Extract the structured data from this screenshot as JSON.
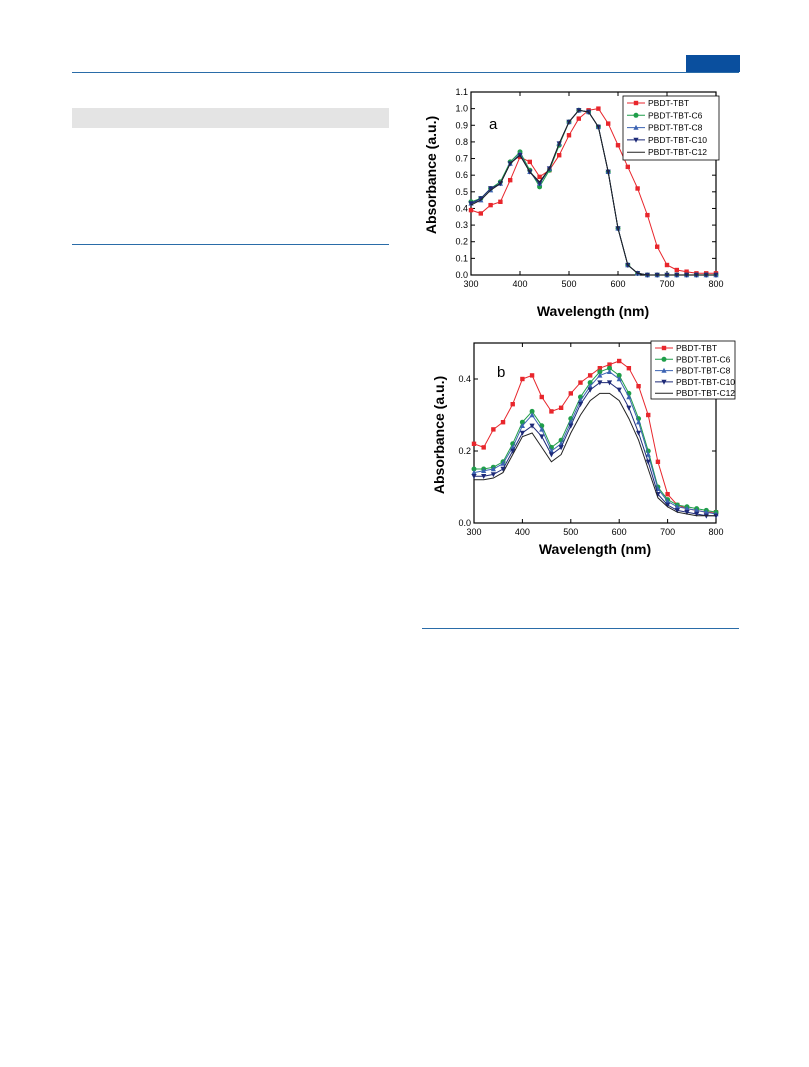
{
  "chart_data": [
    {
      "type": "line",
      "panel_label": "a",
      "xlabel": "Wavelength (nm)",
      "ylabel": "Absorbance (a.u.)",
      "xlim": [
        300,
        800
      ],
      "ylim": [
        0.0,
        1.1
      ],
      "xticks": [
        "300",
        "400",
        "500",
        "600",
        "700",
        "800"
      ],
      "yticks": [
        "0.0",
        "0.1",
        "0.2",
        "0.3",
        "0.4",
        "0.5",
        "0.6",
        "0.7",
        "0.8",
        "0.9",
        "1.0",
        "1.1"
      ],
      "legend_position": "top-right",
      "x": [
        300,
        320,
        340,
        360,
        380,
        400,
        420,
        440,
        460,
        480,
        500,
        520,
        540,
        560,
        580,
        600,
        620,
        640,
        660,
        680,
        700,
        720,
        740,
        760,
        780,
        800
      ],
      "series": [
        {
          "name": "PBDT-TBT",
          "color": "#e8262c",
          "marker": "square",
          "values": [
            0.39,
            0.37,
            0.42,
            0.44,
            0.57,
            0.71,
            0.68,
            0.59,
            0.63,
            0.72,
            0.84,
            0.94,
            0.99,
            1.0,
            0.91,
            0.78,
            0.65,
            0.52,
            0.36,
            0.17,
            0.06,
            0.03,
            0.02,
            0.01,
            0.01,
            0.01
          ]
        },
        {
          "name": "PBDT-TBT-C6",
          "color": "#1f9e4a",
          "marker": "circle",
          "values": [
            0.44,
            0.46,
            0.52,
            0.56,
            0.68,
            0.74,
            0.63,
            0.53,
            0.63,
            0.78,
            0.92,
            0.99,
            0.98,
            0.89,
            0.62,
            0.28,
            0.06,
            0.01,
            0.0,
            0.0,
            0.0,
            0.0,
            0.0,
            0.0,
            0.0,
            0.0
          ]
        },
        {
          "name": "PBDT-TBT-C8",
          "color": "#3b63b3",
          "marker": "triangle-up",
          "values": [
            0.43,
            0.45,
            0.51,
            0.55,
            0.67,
            0.73,
            0.62,
            0.55,
            0.64,
            0.79,
            0.92,
            0.99,
            0.98,
            0.89,
            0.62,
            0.28,
            0.06,
            0.01,
            0.0,
            0.0,
            0.0,
            0.0,
            0.0,
            0.0,
            0.0,
            0.0
          ]
        },
        {
          "name": "PBDT-TBT-C10",
          "color": "#1e2a78",
          "marker": "triangle-down",
          "values": [
            0.43,
            0.46,
            0.52,
            0.55,
            0.67,
            0.72,
            0.62,
            0.55,
            0.64,
            0.79,
            0.92,
            0.99,
            0.98,
            0.89,
            0.62,
            0.28,
            0.06,
            0.01,
            0.0,
            0.0,
            0.0,
            0.0,
            0.0,
            0.0,
            0.0,
            0.0
          ]
        },
        {
          "name": "PBDT-TBT-C12",
          "color": "#222222",
          "marker": "none",
          "values": [
            0.42,
            0.45,
            0.51,
            0.55,
            0.67,
            0.72,
            0.62,
            0.56,
            0.64,
            0.79,
            0.92,
            0.99,
            0.98,
            0.89,
            0.62,
            0.28,
            0.06,
            0.01,
            0.0,
            0.0,
            0.0,
            0.0,
            0.0,
            0.0,
            0.0,
            0.0
          ]
        }
      ]
    },
    {
      "type": "line",
      "panel_label": "b",
      "xlabel": "Wavelength (nm)",
      "ylabel": "Absorbance (a.u.)",
      "xlim": [
        300,
        800
      ],
      "ylim": [
        0.0,
        0.5
      ],
      "xticks": [
        "300",
        "400",
        "500",
        "600",
        "700",
        "800"
      ],
      "yticks": [
        "0.0",
        "0.2",
        "0.4"
      ],
      "legend_position": "top-right",
      "x": [
        300,
        320,
        340,
        360,
        380,
        400,
        420,
        440,
        460,
        480,
        500,
        520,
        540,
        560,
        580,
        600,
        620,
        640,
        660,
        680,
        700,
        720,
        740,
        760,
        780,
        800
      ],
      "series": [
        {
          "name": "PBDT-TBT",
          "color": "#e8262c",
          "marker": "square",
          "values": [
            0.22,
            0.21,
            0.26,
            0.28,
            0.33,
            0.4,
            0.41,
            0.35,
            0.31,
            0.32,
            0.36,
            0.39,
            0.41,
            0.43,
            0.44,
            0.45,
            0.43,
            0.38,
            0.3,
            0.17,
            0.08,
            0.05,
            0.04,
            0.035,
            0.03,
            0.03
          ]
        },
        {
          "name": "PBDT-TBT-C6",
          "color": "#1f9e4a",
          "marker": "circle",
          "values": [
            0.15,
            0.15,
            0.155,
            0.17,
            0.22,
            0.28,
            0.31,
            0.27,
            0.21,
            0.23,
            0.29,
            0.35,
            0.39,
            0.42,
            0.43,
            0.41,
            0.36,
            0.29,
            0.2,
            0.1,
            0.065,
            0.05,
            0.045,
            0.04,
            0.035,
            0.03
          ]
        },
        {
          "name": "PBDT-TBT-C8",
          "color": "#3b63b3",
          "marker": "triangle-up",
          "values": [
            0.14,
            0.145,
            0.15,
            0.165,
            0.21,
            0.27,
            0.3,
            0.26,
            0.2,
            0.22,
            0.28,
            0.34,
            0.38,
            0.41,
            0.42,
            0.4,
            0.35,
            0.28,
            0.19,
            0.095,
            0.06,
            0.045,
            0.04,
            0.035,
            0.03,
            0.025
          ]
        },
        {
          "name": "PBDT-TBT-C10",
          "color": "#1e2a78",
          "marker": "triangle-down",
          "values": [
            0.13,
            0.13,
            0.135,
            0.15,
            0.2,
            0.25,
            0.27,
            0.24,
            0.19,
            0.21,
            0.27,
            0.33,
            0.37,
            0.39,
            0.39,
            0.37,
            0.32,
            0.25,
            0.17,
            0.08,
            0.05,
            0.035,
            0.03,
            0.025,
            0.02,
            0.02
          ]
        },
        {
          "name": "PBDT-TBT-C12",
          "color": "#222222",
          "marker": "none",
          "values": [
            0.12,
            0.12,
            0.125,
            0.14,
            0.19,
            0.24,
            0.25,
            0.21,
            0.17,
            0.19,
            0.25,
            0.3,
            0.34,
            0.36,
            0.36,
            0.34,
            0.29,
            0.23,
            0.15,
            0.07,
            0.045,
            0.03,
            0.025,
            0.02,
            0.02,
            0.02
          ]
        }
      ]
    }
  ]
}
